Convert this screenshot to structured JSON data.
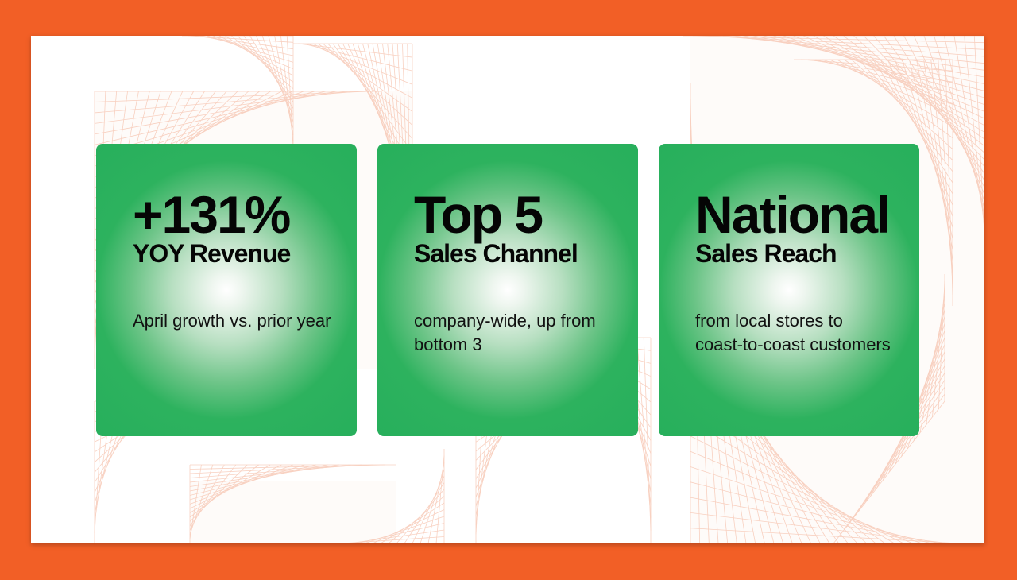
{
  "colors": {
    "frame": "#f25f26",
    "card_green": "#27af5c",
    "pattern_line": "#f6c2ad"
  },
  "cards": [
    {
      "headline": "+131%",
      "subheadline": "YOY Revenue",
      "description": "April growth vs. prior year"
    },
    {
      "headline": "Top 5",
      "subheadline": "Sales Channel",
      "description": "company-wide, up from bottom 3"
    },
    {
      "headline": "National",
      "subheadline": "Sales Reach",
      "description": "from local stores to coast-to-coast customers"
    }
  ]
}
